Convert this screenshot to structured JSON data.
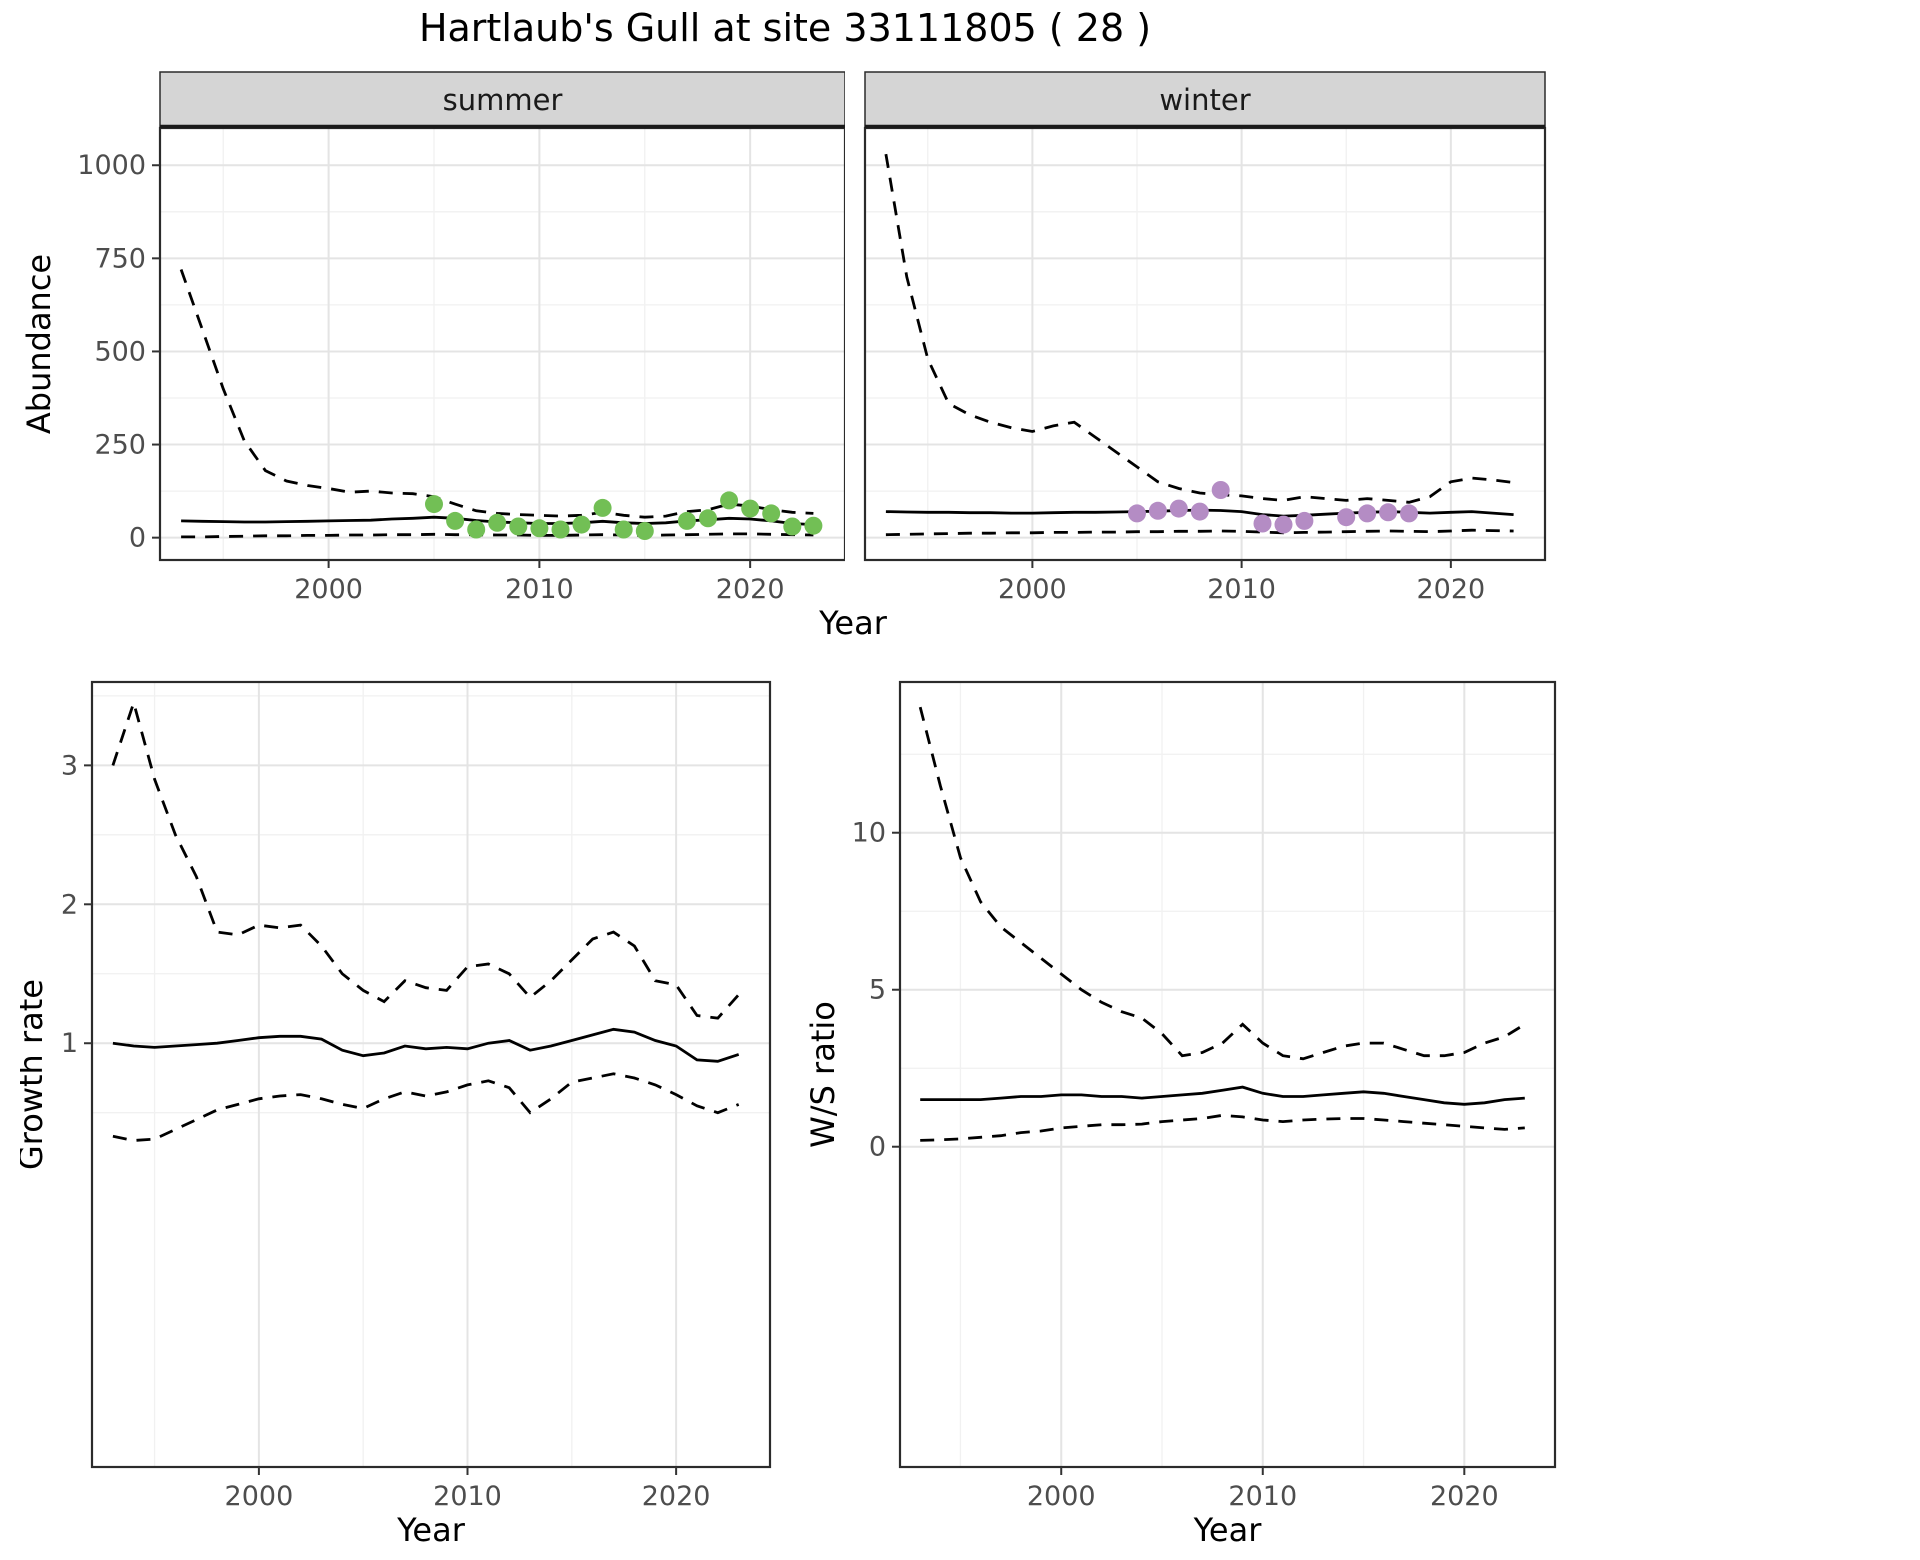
{
  "title": "Hartlaub's Gull at site 33111805 ( 28 )",
  "colors": {
    "line": "#000000",
    "grid_major": "#e4e4e4",
    "grid_minor": "#f1f1f1",
    "panel_border": "#2b2b2b",
    "strip_bg": "#d5d5d5",
    "tick_text": "#4d4d4d",
    "summer_points": "#72bf55",
    "winter_points": "#b48cc4"
  },
  "chart_data": [
    {
      "id": "abundance_summer",
      "type": "line",
      "facet_label": "summer",
      "xlabel": "Year",
      "ylabel": "Abundance",
      "xlim": [
        1992,
        2024.5
      ],
      "ylim": [
        -60,
        1100
      ],
      "xticks": [
        2000,
        2010,
        2020
      ],
      "yticks": [
        0,
        250,
        500,
        750,
        1000
      ],
      "x_minor": [
        1995,
        2005,
        2015
      ],
      "y_minor": [
        125,
        375,
        625,
        875
      ],
      "x": [
        1993,
        1994,
        1995,
        1996,
        1997,
        1998,
        1999,
        2000,
        2001,
        2002,
        2003,
        2004,
        2005,
        2006,
        2007,
        2008,
        2009,
        2010,
        2011,
        2012,
        2013,
        2014,
        2015,
        2016,
        2017,
        2018,
        2019,
        2020,
        2021,
        2022,
        2023
      ],
      "series": [
        {
          "name": "upper_ci",
          "style": "dashed",
          "values": [
            720,
            560,
            400,
            260,
            180,
            152,
            140,
            132,
            122,
            125,
            120,
            118,
            110,
            90,
            72,
            65,
            62,
            60,
            58,
            60,
            68,
            60,
            55,
            58,
            70,
            75,
            90,
            85,
            75,
            68,
            65
          ]
        },
        {
          "name": "median",
          "style": "solid",
          "values": [
            45,
            44,
            43,
            42,
            42,
            43,
            44,
            45,
            46,
            47,
            50,
            52,
            55,
            52,
            46,
            42,
            40,
            38,
            38,
            40,
            44,
            40,
            38,
            40,
            45,
            48,
            52,
            50,
            45,
            38,
            35
          ]
        },
        {
          "name": "lower_ci",
          "style": "dashed",
          "values": [
            2,
            2,
            3,
            4,
            5,
            5,
            6,
            6,
            7,
            7,
            8,
            8,
            9,
            8,
            8,
            7,
            7,
            6,
            6,
            7,
            8,
            7,
            6,
            7,
            8,
            9,
            10,
            10,
            9,
            8,
            7
          ]
        }
      ],
      "points": {
        "name": "observed-counts",
        "color_key": "summer_points",
        "x": [
          2005,
          2006,
          2007,
          2008,
          2009,
          2010,
          2011,
          2012,
          2013,
          2014,
          2015,
          2017,
          2018,
          2019,
          2020,
          2021,
          2022,
          2023
        ],
        "y": [
          90,
          45,
          22,
          40,
          30,
          25,
          22,
          35,
          80,
          22,
          18,
          45,
          52,
          100,
          78,
          65,
          30,
          32
        ]
      }
    },
    {
      "id": "abundance_winter",
      "type": "line",
      "facet_label": "winter",
      "xlabel": "Year",
      "ylabel": "Abundance",
      "xlim": [
        1992,
        2024.5
      ],
      "ylim": [
        -60,
        1100
      ],
      "xticks": [
        2000,
        2010,
        2020
      ],
      "yticks": [
        0,
        250,
        500,
        750,
        1000
      ],
      "x_minor": [
        1995,
        2005,
        2015
      ],
      "y_minor": [
        125,
        375,
        625,
        875
      ],
      "x": [
        1993,
        1994,
        1995,
        1996,
        1997,
        1998,
        1999,
        2000,
        2001,
        2002,
        2003,
        2004,
        2005,
        2006,
        2007,
        2008,
        2009,
        2010,
        2011,
        2012,
        2013,
        2014,
        2015,
        2016,
        2017,
        2018,
        2019,
        2020,
        2021,
        2022,
        2023
      ],
      "series": [
        {
          "name": "upper_ci",
          "style": "dashed",
          "values": [
            1030,
            700,
            480,
            360,
            330,
            310,
            295,
            285,
            300,
            310,
            270,
            230,
            190,
            150,
            132,
            120,
            115,
            112,
            105,
            100,
            110,
            105,
            100,
            105,
            100,
            95,
            110,
            150,
            160,
            155,
            148
          ]
        },
        {
          "name": "median",
          "style": "solid",
          "values": [
            70,
            69,
            68,
            68,
            67,
            67,
            66,
            66,
            67,
            68,
            68,
            69,
            70,
            71,
            73,
            74,
            73,
            70,
            62,
            58,
            60,
            63,
            66,
            68,
            70,
            68,
            66,
            68,
            70,
            66,
            62
          ]
        },
        {
          "name": "lower_ci",
          "style": "dashed",
          "values": [
            8,
            9,
            10,
            11,
            12,
            12,
            13,
            13,
            14,
            14,
            15,
            15,
            16,
            16,
            17,
            17,
            18,
            17,
            15,
            13,
            14,
            15,
            16,
            17,
            18,
            17,
            16,
            18,
            20,
            19,
            18
          ]
        }
      ],
      "points": {
        "name": "observed-counts",
        "color_key": "winter_points",
        "x": [
          2005,
          2006,
          2007,
          2008,
          2009,
          2011,
          2012,
          2013,
          2015,
          2016,
          2017,
          2018
        ],
        "y": [
          65,
          72,
          78,
          70,
          128,
          38,
          35,
          45,
          55,
          65,
          68,
          65
        ]
      }
    },
    {
      "id": "growth_rate",
      "type": "line",
      "xlabel": "Year",
      "ylabel": "Growth rate",
      "xlim": [
        1992,
        2024.5
      ],
      "ylim": [
        -2.05,
        3.6
      ],
      "xticks": [
        2000,
        2010,
        2020
      ],
      "yticks": [
        1,
        2,
        3
      ],
      "x_minor": [
        1995,
        2005,
        2015
      ],
      "y_minor": [
        0.5,
        1.5,
        2.5,
        3.5
      ],
      "x": [
        1993,
        1994,
        1995,
        1996,
        1997,
        1998,
        1999,
        2000,
        2001,
        2002,
        2003,
        2004,
        2005,
        2006,
        2007,
        2008,
        2009,
        2010,
        2011,
        2012,
        2013,
        2014,
        2015,
        2016,
        2017,
        2018,
        2019,
        2020,
        2021,
        2022,
        2023
      ],
      "series": [
        {
          "name": "upper_ci",
          "style": "dashed",
          "values": [
            3.0,
            3.45,
            2.9,
            2.5,
            2.2,
            1.8,
            1.78,
            1.85,
            1.83,
            1.85,
            1.7,
            1.5,
            1.38,
            1.3,
            1.45,
            1.4,
            1.38,
            1.55,
            1.57,
            1.5,
            1.33,
            1.45,
            1.6,
            1.75,
            1.8,
            1.7,
            1.45,
            1.42,
            1.2,
            1.18,
            1.35
          ]
        },
        {
          "name": "median",
          "style": "solid",
          "values": [
            1.0,
            0.98,
            0.97,
            0.98,
            0.99,
            1.0,
            1.02,
            1.04,
            1.05,
            1.05,
            1.03,
            0.95,
            0.91,
            0.93,
            0.98,
            0.96,
            0.97,
            0.96,
            1.0,
            1.02,
            0.95,
            0.98,
            1.02,
            1.06,
            1.1,
            1.08,
            1.02,
            0.98,
            0.88,
            0.87,
            0.92
          ]
        },
        {
          "name": "lower_ci",
          "style": "dashed",
          "values": [
            0.33,
            0.3,
            0.31,
            0.38,
            0.45,
            0.52,
            0.56,
            0.6,
            0.62,
            0.63,
            0.6,
            0.56,
            0.53,
            0.6,
            0.65,
            0.62,
            0.65,
            0.7,
            0.73,
            0.68,
            0.5,
            0.6,
            0.72,
            0.75,
            0.78,
            0.75,
            0.7,
            0.63,
            0.55,
            0.5,
            0.56
          ]
        }
      ]
    },
    {
      "id": "ws_ratio",
      "type": "line",
      "xlabel": "Year",
      "ylabel": "W/S ratio",
      "xlim": [
        1992,
        2024.5
      ],
      "ylim": [
        -10.2,
        14.8
      ],
      "xticks": [
        2000,
        2010,
        2020
      ],
      "yticks": [
        0,
        5,
        10
      ],
      "x_minor": [
        1995,
        2005,
        2015
      ],
      "y_minor": [
        2.5,
        7.5,
        12.5
      ],
      "x": [
        1993,
        1994,
        1995,
        1996,
        1997,
        1998,
        1999,
        2000,
        2001,
        2002,
        2003,
        2004,
        2005,
        2006,
        2007,
        2008,
        2009,
        2010,
        2011,
        2012,
        2013,
        2014,
        2015,
        2016,
        2017,
        2018,
        2019,
        2020,
        2021,
        2022,
        2023
      ],
      "series": [
        {
          "name": "upper_ci",
          "style": "dashed",
          "values": [
            14.0,
            11.5,
            9.2,
            7.8,
            7.0,
            6.5,
            6.0,
            5.5,
            5.0,
            4.6,
            4.3,
            4.1,
            3.6,
            2.9,
            3.0,
            3.3,
            3.9,
            3.3,
            2.9,
            2.8,
            3.0,
            3.2,
            3.3,
            3.3,
            3.1,
            2.9,
            2.9,
            3.0,
            3.3,
            3.5,
            3.9
          ]
        },
        {
          "name": "median",
          "style": "solid",
          "values": [
            1.5,
            1.5,
            1.5,
            1.5,
            1.55,
            1.6,
            1.6,
            1.65,
            1.65,
            1.6,
            1.6,
            1.55,
            1.6,
            1.65,
            1.7,
            1.8,
            1.9,
            1.7,
            1.6,
            1.6,
            1.65,
            1.7,
            1.75,
            1.7,
            1.6,
            1.5,
            1.4,
            1.35,
            1.4,
            1.5,
            1.55
          ]
        },
        {
          "name": "lower_ci",
          "style": "dashed",
          "values": [
            0.2,
            0.22,
            0.25,
            0.3,
            0.35,
            0.45,
            0.5,
            0.6,
            0.65,
            0.7,
            0.7,
            0.72,
            0.8,
            0.85,
            0.9,
            1.0,
            0.95,
            0.85,
            0.8,
            0.85,
            0.88,
            0.9,
            0.9,
            0.85,
            0.8,
            0.75,
            0.7,
            0.65,
            0.6,
            0.55,
            0.6
          ]
        }
      ]
    }
  ]
}
